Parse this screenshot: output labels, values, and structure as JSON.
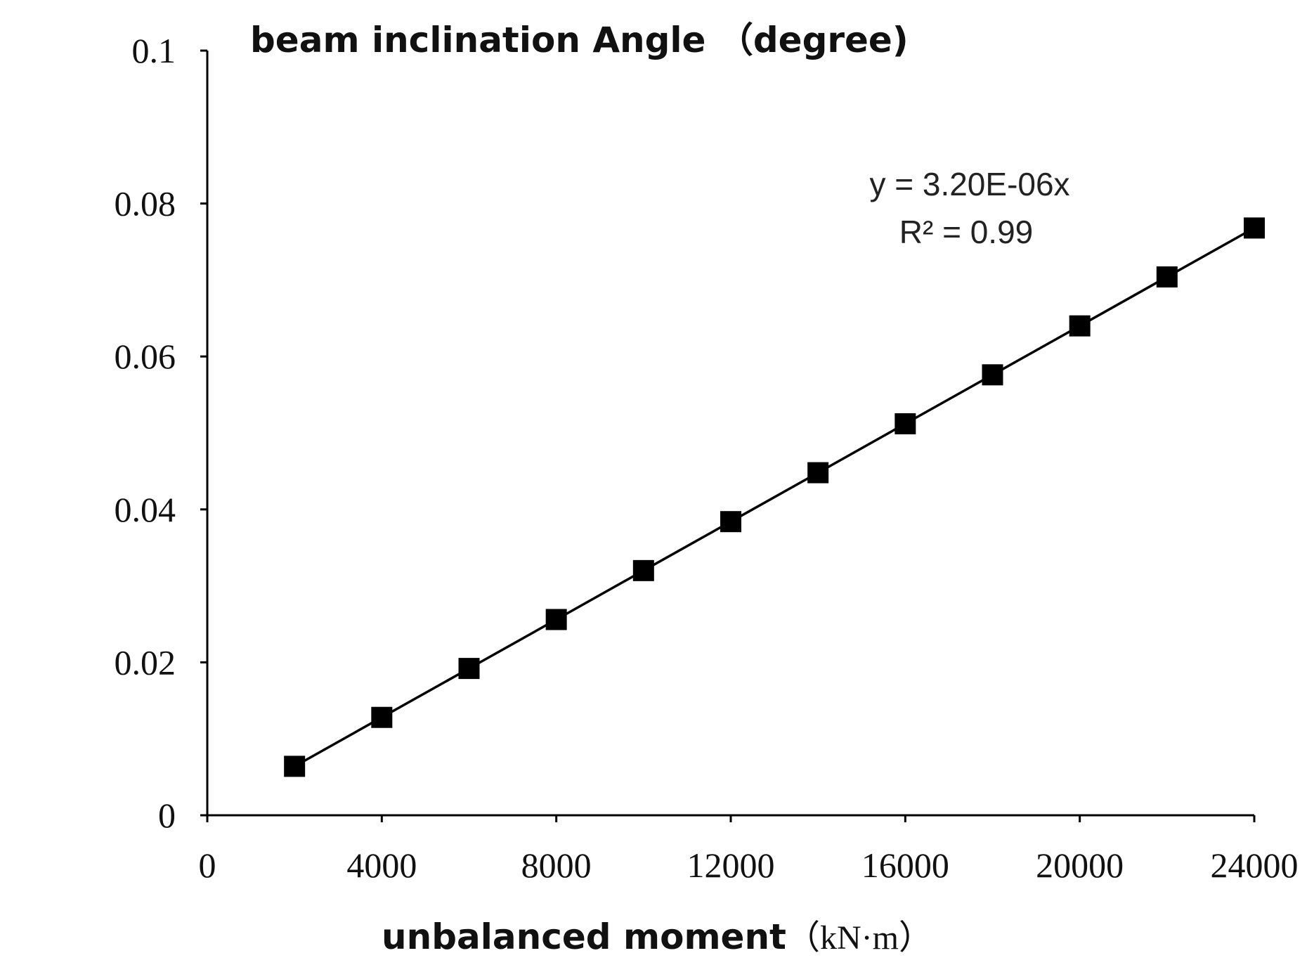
{
  "chart_data": {
    "type": "line",
    "title": "",
    "xlabel": "unbalanced moment",
    "xlabel_unit": "（kN·m）",
    "ylabel": "beam inclination Angle （degree)",
    "xlim": [
      0,
      24000
    ],
    "ylim": [
      0,
      0.1
    ],
    "x_ticks": [
      0,
      4000,
      8000,
      12000,
      16000,
      20000,
      24000
    ],
    "x_tick_labels": [
      "0",
      "4000",
      "8000",
      "12000",
      "16000",
      "20000",
      "24000"
    ],
    "y_ticks": [
      0,
      0.02,
      0.04,
      0.06,
      0.08,
      0.1
    ],
    "y_tick_labels": [
      "0",
      "0.02",
      "0.04",
      "0.06",
      "0.08",
      "0.1"
    ],
    "grid": false,
    "legend": "none",
    "marker": "square",
    "series": [
      {
        "x": [
          2000,
          4000,
          6000,
          8000,
          10000,
          12000,
          14000,
          16000,
          18000,
          20000,
          22000,
          24000
        ],
        "y": [
          0.0064,
          0.0128,
          0.0192,
          0.0256,
          0.032,
          0.0384,
          0.0448,
          0.0512,
          0.0576,
          0.064,
          0.0704,
          0.0768
        ],
        "color": "#000000"
      }
    ],
    "annotations": [
      "y = 3.20E-06x",
      "R² = 0.99"
    ]
  }
}
